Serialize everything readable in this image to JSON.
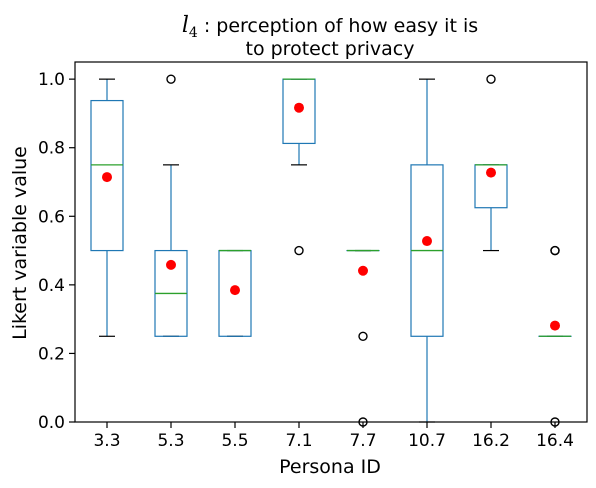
{
  "chart_data": {
    "type": "box",
    "title": {
      "math_symbol": "l",
      "math_subscript": "4",
      "line1_rest": " : perception of how easy it is",
      "line2": "to protect privacy"
    },
    "xlabel": "Persona ID",
    "ylabel": "Likert variable value",
    "ylim": [
      0.0,
      1.05
    ],
    "yticks": [
      "0.0",
      "0.2",
      "0.4",
      "0.6",
      "0.8",
      "1.0"
    ],
    "categories": [
      "3.3",
      "5.3",
      "5.5",
      "7.1",
      "7.7",
      "10.7",
      "16.2",
      "16.4"
    ],
    "boxes": [
      {
        "whisker_low": 0.25,
        "q1": 0.5,
        "median": 0.75,
        "q3": 0.9375,
        "whisker_high": 1.0,
        "mean": 0.7143,
        "outliers": []
      },
      {
        "whisker_low": 0.25,
        "q1": 0.25,
        "median": 0.375,
        "q3": 0.5,
        "whisker_high": 0.75,
        "mean": 0.4583,
        "outliers": [
          1.0
        ]
      },
      {
        "whisker_low": 0.25,
        "q1": 0.25,
        "median": 0.5,
        "q3": 0.5,
        "whisker_high": 0.5,
        "mean": 0.3846,
        "outliers": []
      },
      {
        "whisker_low": 0.75,
        "q1": 0.8125,
        "median": 1.0,
        "q3": 1.0,
        "whisker_high": 1.0,
        "mean": 0.9167,
        "outliers": [
          0.5
        ]
      },
      {
        "whisker_low": 0.5,
        "q1": 0.5,
        "median": 0.5,
        "q3": 0.5,
        "whisker_high": 0.5,
        "mean": 0.4412,
        "outliers": [
          0.25,
          0.0
        ]
      },
      {
        "whisker_low": 0.0,
        "q1": 0.25,
        "median": 0.5,
        "q3": 0.75,
        "whisker_high": 1.0,
        "mean": 0.5278,
        "outliers": []
      },
      {
        "whisker_low": 0.5,
        "q1": 0.625,
        "median": 0.75,
        "q3": 0.75,
        "whisker_high": 0.75,
        "mean": 0.7273,
        "outliers": [
          1.0
        ]
      },
      {
        "whisker_low": 0.25,
        "q1": 0.25,
        "median": 0.25,
        "q3": 0.25,
        "whisker_high": 0.25,
        "mean": 0.2812,
        "outliers": [
          0.5,
          0.5,
          0.0
        ]
      }
    ],
    "colors": {
      "box": "#1f77b4",
      "median": "#2ca02c",
      "mean": "#ff0000",
      "whisker": "#000000",
      "outlier": "#000000"
    },
    "grid": false,
    "legend": "none"
  }
}
